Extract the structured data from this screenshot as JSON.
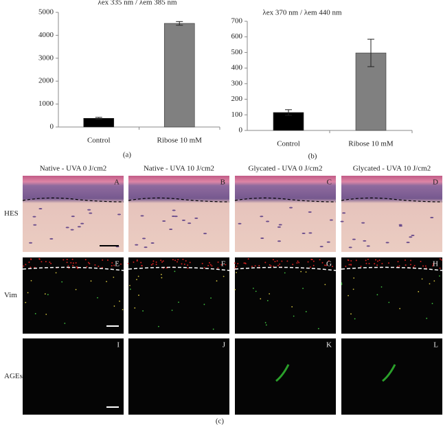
{
  "chart_data": [
    {
      "type": "bar",
      "title": "λex 335 nm / λem 385 nm",
      "categories": [
        "Control",
        "Ribose 10 mM"
      ],
      "values": [
        380,
        4520
      ],
      "errors": [
        40,
        80
      ],
      "colors": [
        "#000000",
        "#808080"
      ],
      "ylim": [
        0,
        5000
      ],
      "yticks": [
        0,
        1000,
        2000,
        3000,
        4000,
        5000
      ],
      "panel_label": "(a)"
    },
    {
      "type": "bar",
      "title": "λex 370 nm / λem 440 nm",
      "categories": [
        "Control",
        "Ribose 10 mM"
      ],
      "values": [
        115,
        497
      ],
      "errors": [
        18,
        88
      ],
      "colors": [
        "#000000",
        "#808080"
      ],
      "ylim": [
        0,
        700
      ],
      "yticks": [
        0,
        100,
        200,
        300,
        400,
        500,
        600,
        700
      ],
      "panel_label": "(b)"
    }
  ],
  "figure": {
    "columns": [
      "Native - UVA 0 J/cm2",
      "Native - UVA 10 J/cm2",
      "Glycated - UVA 0 J/cm2",
      "Glycated - UVA 10 J/cm2"
    ],
    "rows": [
      "HES",
      "Vim",
      "AGEs"
    ],
    "panels": [
      "A",
      "B",
      "C",
      "D",
      "E",
      "F",
      "G",
      "H",
      "I",
      "J",
      "K",
      "L"
    ],
    "panel_label": "(c)"
  }
}
